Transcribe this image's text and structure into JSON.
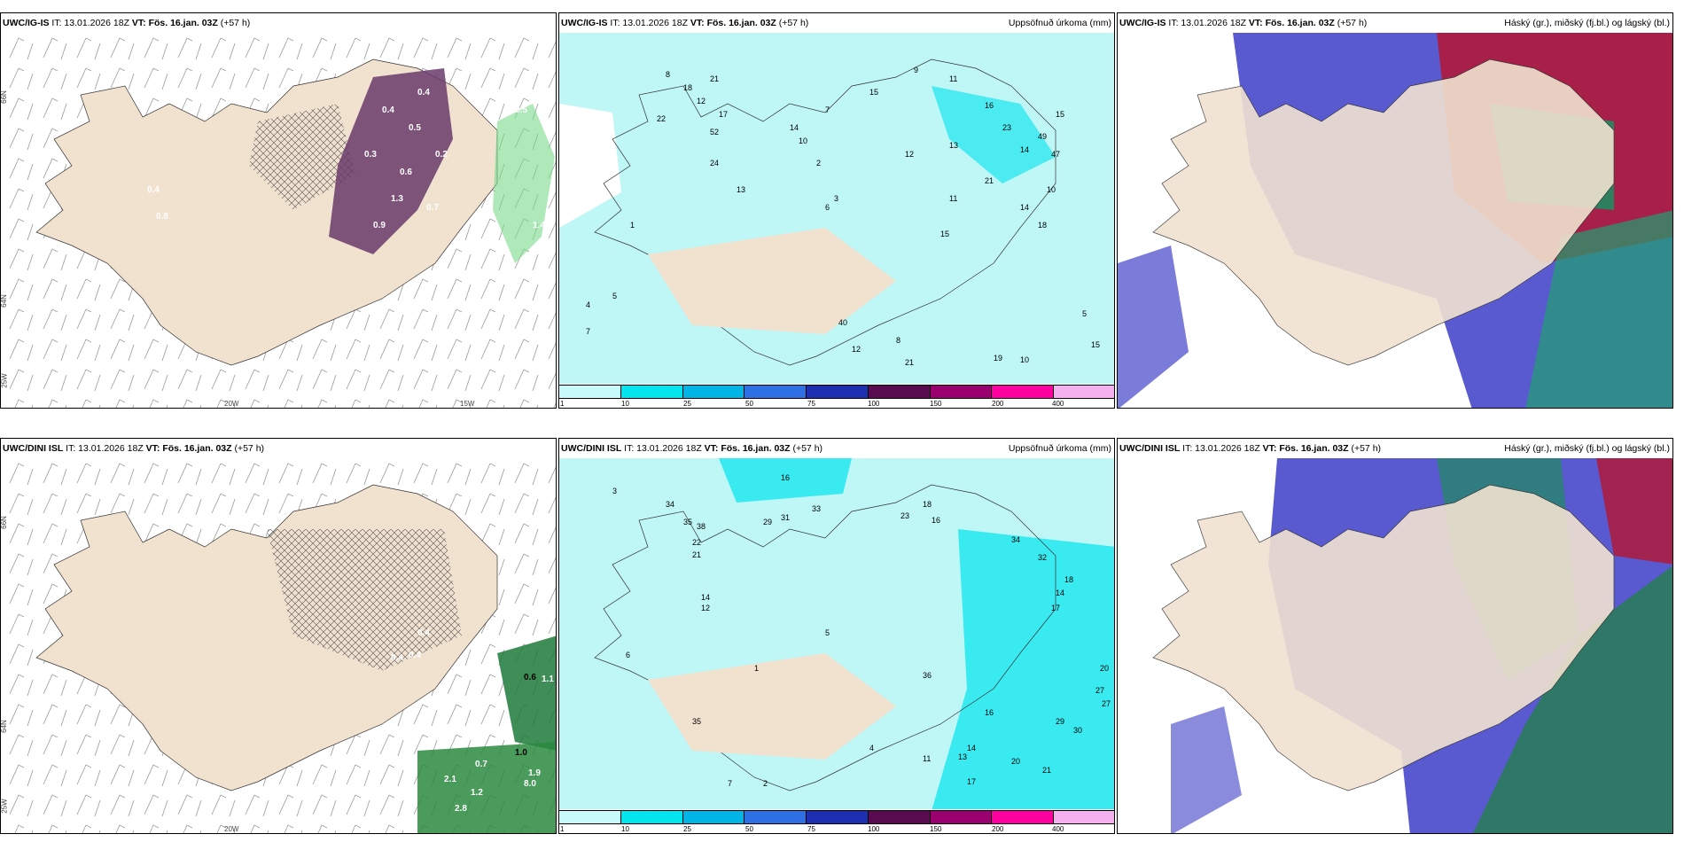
{
  "panels": [
    {
      "model": "UWC/IG-IS",
      "it": "IT: 13.01.2026 18Z",
      "vt": "VT: Fös. 16.jan. 03Z",
      "lead": "(+57 h)",
      "right": ""
    },
    {
      "model": "UWC/IG-IS",
      "it": "IT: 13.01.2026 18Z",
      "vt": "VT: Fös. 16.jan. 03Z",
      "lead": "(+57 h)",
      "right": "Uppsöfnuð úrkoma (mm)"
    },
    {
      "model": "UWC/IG-IS",
      "it": "IT: 13.01.2026 18Z",
      "vt": "VT: Fös. 16.jan. 03Z",
      "lead": "(+57 h)",
      "right": "Háský (gr.), miðský (fj.bl.) og lágský (bl.)"
    },
    {
      "model": "UWC/DINI ISL",
      "it": "IT: 13.01.2026 18Z",
      "vt": "VT: Fös. 16.jan. 03Z",
      "lead": "(+57 h)",
      "right": ""
    },
    {
      "model": "UWC/DINI ISL",
      "it": "IT: 13.01.2026 18Z",
      "vt": "VT: Fös. 16.jan. 03Z",
      "lead": "(+57 h)",
      "right": "Uppsöfnuð úrkoma (mm)"
    },
    {
      "model": "UWC/DINI ISL",
      "it": "IT: 13.01.2026 18Z",
      "vt": "VT: Fös. 16.jan. 03Z",
      "lead": "(+57 h)",
      "right": "Háský (gr.), miðský (fj.bl.) og lágský (bl.)"
    }
  ],
  "axis_labels": {
    "lat66": "66N",
    "lat64": "64N",
    "lon25": "25W",
    "lon20": "20W",
    "lon15": "15W"
  },
  "colorbar": {
    "ticks": [
      "1",
      "10",
      "25",
      "50",
      "75",
      "100",
      "150",
      "200",
      "400"
    ],
    "colors": [
      "#c8fbfb",
      "#00e5ee",
      "#00b5e5",
      "#2f6fe5",
      "#1b2fb0",
      "#5a0a50",
      "#9a0070",
      "#ff00a0",
      "#f5b0f0"
    ]
  },
  "colors": {
    "land": "#f1e2d0",
    "sea_precip": "#bff6f6",
    "high_cloud": "#5a5ad0",
    "mid_cloud": "#b01a3a",
    "low_cloud": "#1fa070",
    "snow": "#8a3a8a"
  },
  "precip_top": [
    "8",
    "18",
    "12",
    "21",
    "17",
    "22",
    "52",
    "14",
    "24",
    "10",
    "7",
    "15",
    "9",
    "11",
    "16",
    "23",
    "21",
    "14",
    "15",
    "49",
    "47",
    "14",
    "18",
    "15",
    "10",
    "13",
    "12",
    "11",
    "2",
    "13",
    "6",
    "1",
    "3",
    "5",
    "4",
    "7",
    "40",
    "12",
    "8",
    "21",
    "19",
    "10",
    "15",
    "5"
  ],
  "precip_bottom": [
    "16",
    "3",
    "34",
    "35",
    "38",
    "22",
    "21",
    "14",
    "12",
    "31",
    "29",
    "33",
    "23",
    "18",
    "16",
    "34",
    "32",
    "18",
    "14",
    "17",
    "20",
    "27",
    "27",
    "30",
    "29",
    "21",
    "20",
    "16",
    "14",
    "13",
    "11",
    "17",
    "36",
    "35",
    "7",
    "2",
    "4",
    "5",
    "6",
    "1"
  ],
  "snow_top": [
    "0.4",
    "0.5",
    "0.3",
    "0.6",
    "0.4",
    "1.3",
    "0.2",
    "0.9",
    "0.7",
    "0.5",
    "1.4",
    "0.8",
    "0.4"
  ],
  "snow_bottom": [
    "0.6",
    "1.1",
    "0.7",
    "1.0",
    "1.9",
    "8.0",
    "2.1",
    "1.2",
    "2.8",
    "0.4",
    "0.4",
    "0.4"
  ]
}
